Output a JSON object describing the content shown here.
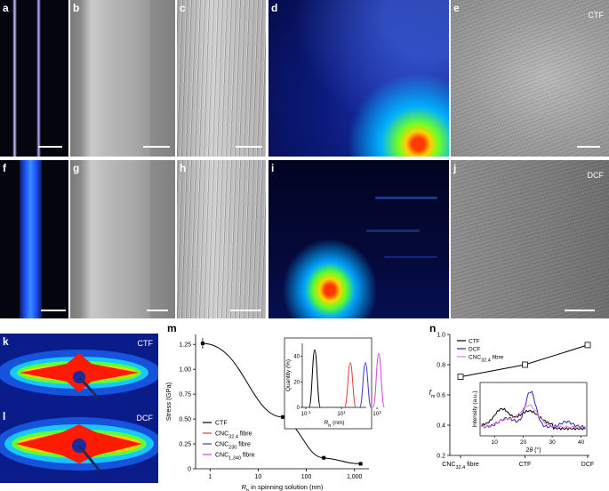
{
  "panels": {
    "a": {
      "label": "a"
    },
    "b": {
      "label": "b"
    },
    "c": {
      "label": "c"
    },
    "d": {
      "label": "d"
    },
    "e": {
      "label": "e",
      "tag": "CTF"
    },
    "f": {
      "label": "f"
    },
    "g": {
      "label": "g"
    },
    "h": {
      "label": "h"
    },
    "i": {
      "label": "i"
    },
    "j": {
      "label": "j",
      "tag": "DCF"
    },
    "k": {
      "label": "k",
      "tag": "CTF"
    },
    "l": {
      "label": "l",
      "tag": "DCF"
    },
    "m": {
      "label": "m"
    },
    "n": {
      "label": "n"
    }
  },
  "colors": {
    "ctf": "#000000",
    "cnc324": "#e0403a",
    "cnc230": "#3a3acb",
    "cnc1340": "#d93ed9",
    "dcf": "#2a2ab5",
    "cnc_fibre_n": "#e37bd8"
  },
  "chart_data": [
    {
      "id": "m",
      "type": "line",
      "xscale": "log",
      "xlim": [
        0.5,
        2000
      ],
      "ylim": [
        0,
        1.35
      ],
      "xlabel_main": "R",
      "xlabel_sub": "h",
      "xlabel_rest": " in spinning solution (nm)",
      "ylabel": "Stress (GPa)",
      "xticks": [
        "1",
        "10",
        "100",
        "1,000"
      ],
      "yticks": [
        "0",
        "0.25",
        "0.50",
        "0.75",
        "1.00",
        "1.25"
      ],
      "x": [
        0.7,
        32.4,
        230,
        1340
      ],
      "y": [
        1.26,
        0.52,
        0.11,
        0.05
      ],
      "legend": [
        {
          "label": "CTF",
          "sub": ""
        },
        {
          "label": "CNC",
          "sub": "32.4",
          "suffix": " fibre"
        },
        {
          "label": "CNC",
          "sub": "230",
          "suffix": " fibre"
        },
        {
          "label": "CNC",
          "sub": "1,340",
          "suffix": " fibre"
        }
      ],
      "inset": {
        "type": "line",
        "ylabel": "Quantity (%)",
        "xlabel_main": "R",
        "xlabel_sub": "h",
        "xlabel_rest": " (nm)",
        "yticks": [
          "0",
          "20",
          "40"
        ],
        "xticks_base": "10",
        "xticks_exp": [
          "-1",
          "1",
          "3"
        ],
        "peaks": [
          {
            "series": "CTF",
            "center_log": -0.5,
            "height": 45
          },
          {
            "series": "CNC32.4",
            "center_log": 1.5,
            "height": 35
          },
          {
            "series": "CNC230",
            "center_log": 2.35,
            "height": 35
          },
          {
            "series": "CNC1340",
            "center_log": 3.1,
            "height": 42
          }
        ]
      }
    },
    {
      "id": "n",
      "type": "line",
      "ylabel_main": "f",
      "ylabel_sub": "m",
      "ylim": [
        0.2,
        1.0
      ],
      "yticks": [
        "0.2",
        "0.4",
        "0.6",
        "0.8",
        "1.0"
      ],
      "categories": [
        {
          "label": "CNC",
          "sub": "32.4",
          "suffix": " fibre"
        },
        {
          "label": "CTF"
        },
        {
          "label": "DCF"
        }
      ],
      "values": [
        0.72,
        0.8,
        0.93
      ],
      "legend": [
        {
          "label": "CTF"
        },
        {
          "label": "DCF"
        },
        {
          "label": "CNC",
          "sub": "32.4",
          "suffix": " fibre"
        }
      ],
      "inset": {
        "xlabel_main": "2",
        "xlabel_theta": "θ",
        "xlabel_rest": " (°)",
        "ylabel": "Intensity (a.u.)",
        "xticks": [
          "10",
          "20",
          "30",
          "40"
        ],
        "xlim": [
          5,
          42
        ]
      }
    }
  ]
}
